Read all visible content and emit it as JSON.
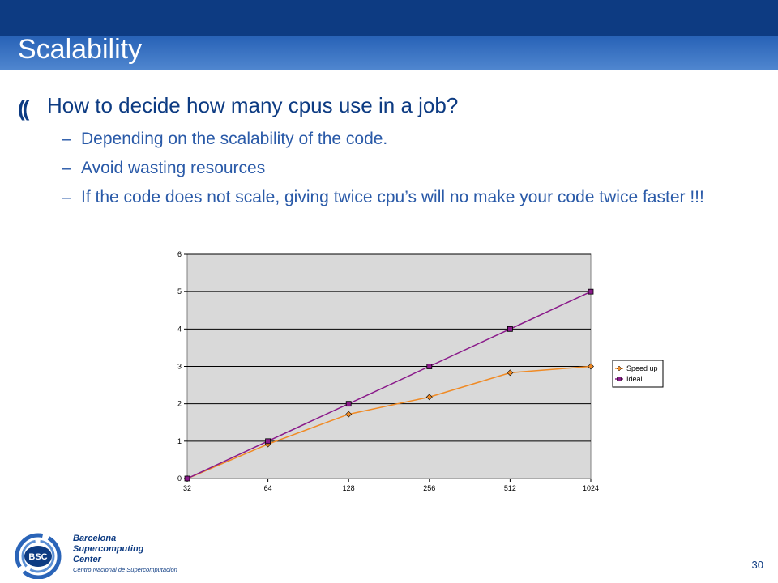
{
  "slide": {
    "title": "Scalability",
    "main_bullet": "How to decide how many cpus use in a job?",
    "sub_bullets": [
      "Depending on the scalability of the code.",
      "Avoid wasting resources",
      "If the code does not scale, giving twice cpu’s will no make your code twice faster !!!"
    ],
    "dash": "–",
    "bullet_symbol": "((",
    "page_number": "30"
  },
  "logo": {
    "line1": "Barcelona",
    "line2": "Supercomputing",
    "line3": "Center",
    "subtitle": "Centro Nacional de Supercomputación",
    "badge": "BSC"
  },
  "chart_data": {
    "type": "line",
    "categories": [
      "32",
      "64",
      "128",
      "256",
      "512",
      "1024"
    ],
    "ylim": [
      0,
      6
    ],
    "yticks": [
      "0",
      "1",
      "2",
      "3",
      "4",
      "5",
      "6"
    ],
    "grid": true,
    "legend_position": "right",
    "series": [
      {
        "name": "Speed up",
        "values": [
          0,
          0.92,
          1.72,
          2.18,
          2.83,
          3.0
        ],
        "color": "#f08a24",
        "marker": "diamond"
      },
      {
        "name": "Ideal",
        "values": [
          0,
          1,
          2,
          3,
          4,
          5
        ],
        "color": "#8a1a8a",
        "marker": "square"
      }
    ]
  },
  "colors": {
    "brand_blue": "#0d3b82",
    "text_blue": "#2a5aa8",
    "plot_bg": "#d9d9d9"
  }
}
